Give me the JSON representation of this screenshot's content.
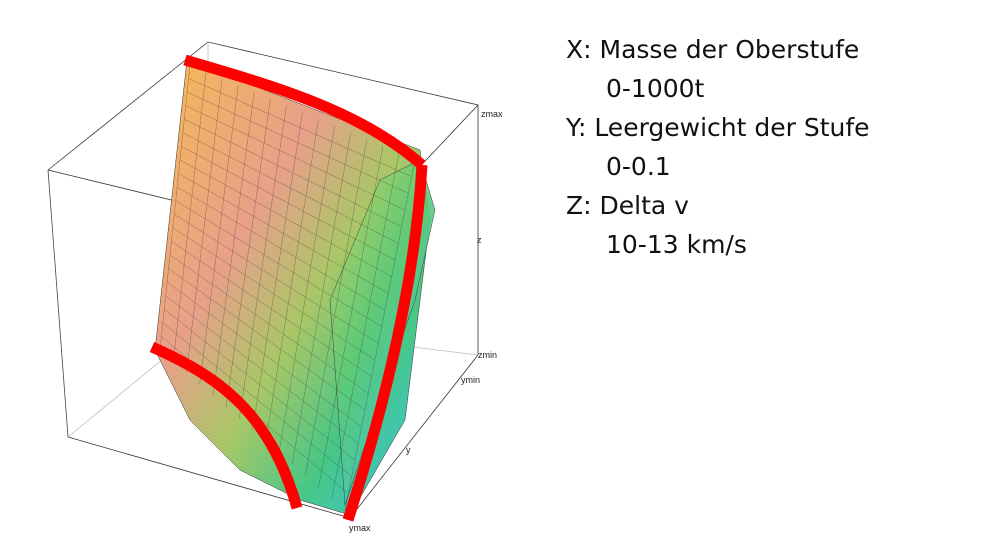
{
  "plot": {
    "type": "3d-surface",
    "axis_labels": {
      "zmax": "zmax",
      "z": "z",
      "zmin": "zmin",
      "ymin": "ymin",
      "y": "y",
      "ymax": "ymax"
    },
    "highlight_color": "#ff0000",
    "colormap": [
      "#f6ba54",
      "#e9a08a",
      "#9fce62",
      "#3cc77e",
      "#38c5e8"
    ]
  },
  "legend": {
    "x_label": "X: Masse der Oberstufe",
    "x_range": "0-1000t",
    "y_label": "Y: Leergewicht der Stufe",
    "y_range": "0-0.1",
    "z_label": "Z: Delta v",
    "z_range": "10-13 km/s"
  }
}
